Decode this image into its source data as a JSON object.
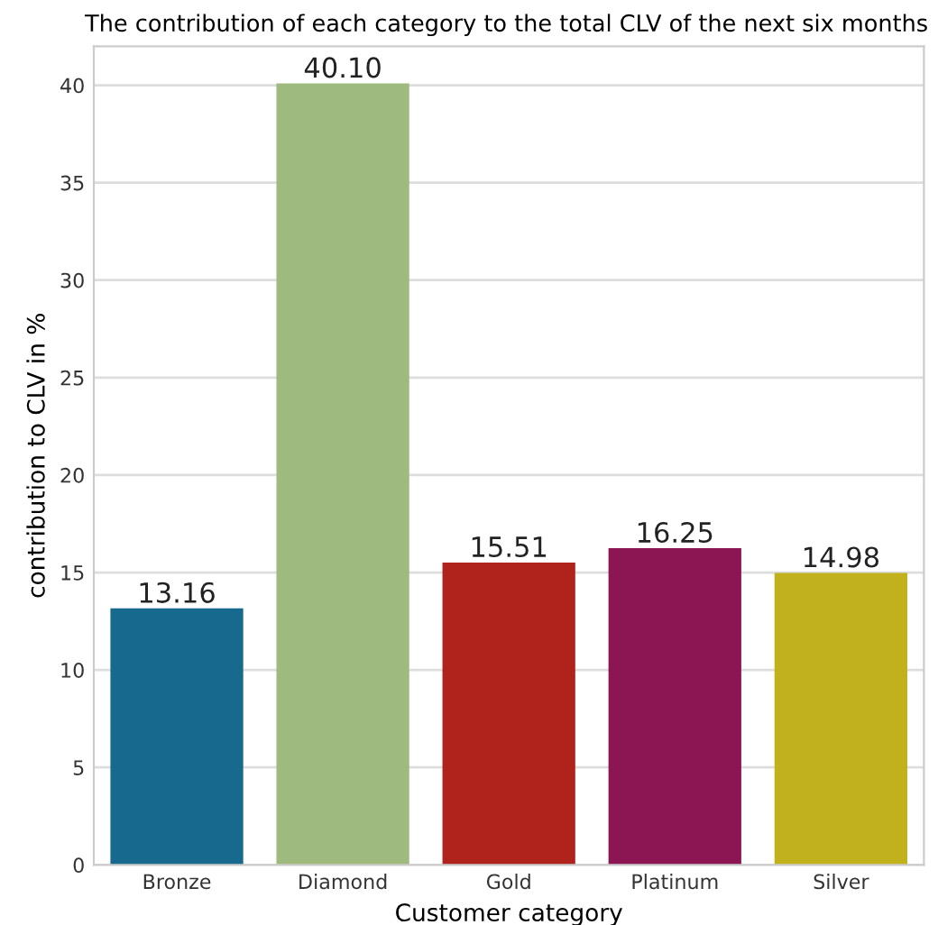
{
  "chart_data": {
    "type": "bar",
    "title": "The contribution of each category to the total CLV of the next six months",
    "xlabel": "Customer category",
    "ylabel": "contribution to CLV in %",
    "categories": [
      "Bronze",
      "Diamond",
      "Gold",
      "Platinum",
      "Silver"
    ],
    "values": [
      13.16,
      40.1,
      15.51,
      16.25,
      14.98
    ],
    "value_labels": [
      "13.16",
      "40.10",
      "15.51",
      "16.25",
      "14.98"
    ],
    "colors": [
      "#17698e",
      "#9fba7e",
      "#b0231c",
      "#8c1553",
      "#c0b11d"
    ],
    "ylim": [
      0,
      42
    ],
    "yticks": [
      0,
      5,
      10,
      15,
      20,
      25,
      30,
      35,
      40
    ],
    "grid": "y"
  }
}
